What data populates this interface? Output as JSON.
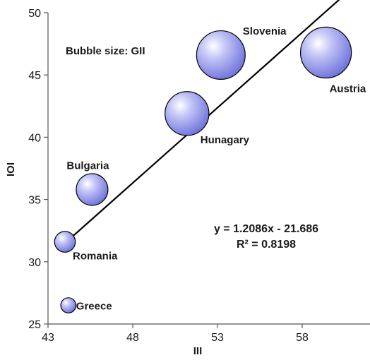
{
  "chart_data": {
    "type": "bubble",
    "xlabel": "III",
    "ylabel": "IOI",
    "xlim": [
      43,
      62
    ],
    "ylim": [
      25,
      50
    ],
    "xticks": [
      43,
      48,
      53,
      58
    ],
    "yticks": [
      25,
      30,
      35,
      40,
      45,
      50
    ],
    "size_note": "Bubble size: GII",
    "bubble_color": "#8f93ea",
    "points": [
      {
        "label": "Austria",
        "x": 59.4,
        "y": 46.8,
        "size": 0.9
      },
      {
        "label": "Slovenia",
        "x": 53.2,
        "y": 46.6,
        "size": 0.82
      },
      {
        "label": "Hunagary",
        "x": 51.2,
        "y": 41.9,
        "size": 0.67
      },
      {
        "label": "Bulgaria",
        "x": 45.6,
        "y": 35.8,
        "size": 0.35
      },
      {
        "label": "Romania",
        "x": 44.0,
        "y": 31.6,
        "size": 0.15
      },
      {
        "label": "Greece",
        "x": 44.2,
        "y": 26.5,
        "size": 0.08
      }
    ],
    "trendline": {
      "slope": 1.2086,
      "intercept": -21.686,
      "x_range": [
        44.0,
        62.0
      ],
      "equation": "y = 1.2086x - 21.686",
      "r2": "R² = 0.8198"
    }
  }
}
